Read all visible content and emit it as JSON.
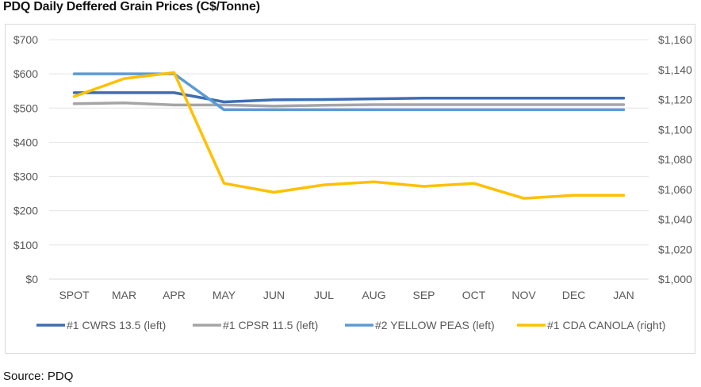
{
  "title": "PDQ Daily Deffered Grain Prices (C$/Tonne)",
  "source": "Source: PDQ",
  "chart_data": {
    "type": "line",
    "categories": [
      "SPOT",
      "MAR",
      "APR",
      "MAY",
      "JUN",
      "JUL",
      "AUG",
      "SEP",
      "OCT",
      "NOV",
      "DEC",
      "JAN"
    ],
    "y_left": {
      "ticks": [
        "$0",
        "$100",
        "$200",
        "$300",
        "$400",
        "$500",
        "$600",
        "$700"
      ],
      "ylim": [
        0,
        700
      ]
    },
    "y_right": {
      "ticks": [
        "$1,000",
        "$1,020",
        "$1,040",
        "$1,060",
        "$1,080",
        "$1,100",
        "$1,120",
        "$1,140",
        "$1,160"
      ],
      "ylim": [
        1000,
        1160
      ]
    },
    "grid": true,
    "legend_position": "bottom",
    "series": [
      {
        "name": "#1 CWRS 13.5 (left)",
        "axis": "left",
        "color": "#3e6db3",
        "values": [
          545,
          545,
          545,
          518,
          524,
          525,
          527,
          529,
          529,
          529,
          529,
          529
        ]
      },
      {
        "name": "#1 CPSR 11.5 (left)",
        "axis": "left",
        "color": "#a5a5a5",
        "values": [
          513,
          515,
          509,
          509,
          506,
          508,
          510,
          510,
          510,
          510,
          510,
          510
        ]
      },
      {
        "name": "#2 YELLOW PEAS (left)",
        "axis": "left",
        "color": "#5b9bd5",
        "values": [
          600,
          600,
          600,
          495,
          495,
          495,
          495,
          495,
          495,
          495,
          495,
          495
        ]
      },
      {
        "name": "#1 CDA CANOLA (right)",
        "axis": "right",
        "color": "#ffc000",
        "values": [
          1122,
          1134,
          1138,
          1064,
          1058,
          1063,
          1065,
          1062,
          1064,
          1054,
          1056,
          1056
        ]
      }
    ]
  }
}
